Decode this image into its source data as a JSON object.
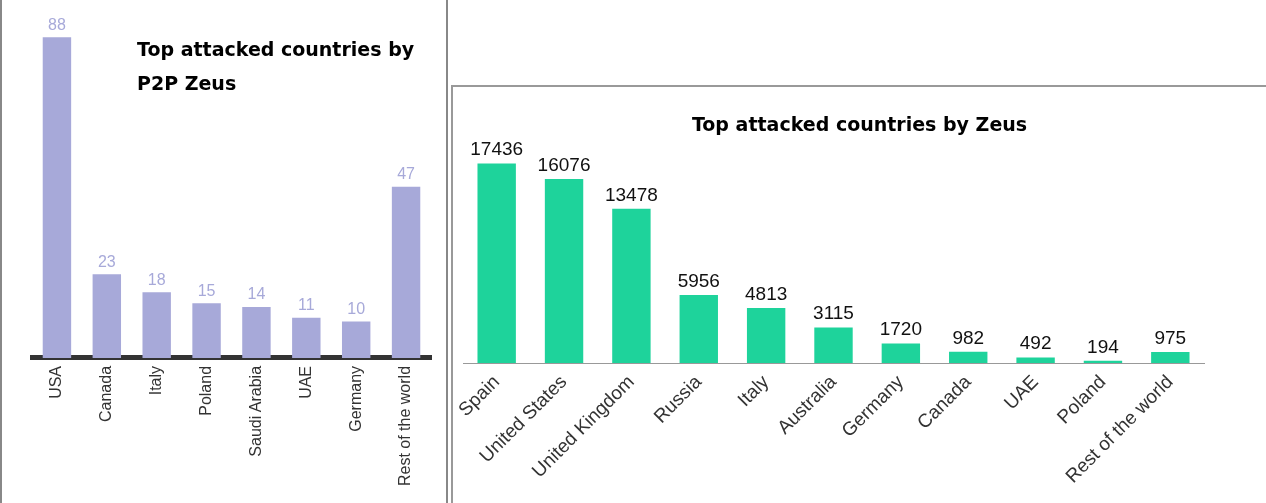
{
  "chart_data": [
    {
      "type": "bar",
      "title": "Top attacked countries by P2P Zeus",
      "categories": [
        "USA",
        "Canada",
        "Italy",
        "Poland",
        "Saudi Arabia",
        "UAE",
        "Germany",
        "Rest of the world"
      ],
      "series": [
        {
          "color": "#a7a9d9",
          "values": [
            88,
            23,
            18,
            15,
            14,
            11,
            10,
            47
          ]
        }
      ],
      "data_labels": true,
      "grid": false,
      "legend": false
    },
    {
      "type": "bar",
      "title": "Top attacked countries by Zeus",
      "categories": [
        "Spain",
        "United States",
        "United Kingdom",
        "Russia",
        "Italy",
        "Australia",
        "Germany",
        "Canada",
        "UAE",
        "Poland",
        "Rest of the world"
      ],
      "series": [
        {
          "color": "#1ed39b",
          "values": [
            17436,
            16076,
            13478,
            5956,
            4813,
            3115,
            1720,
            982,
            492,
            194,
            975
          ]
        }
      ],
      "data_labels": true,
      "grid": false,
      "legend": false
    }
  ]
}
